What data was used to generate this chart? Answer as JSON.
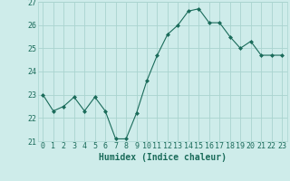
{
  "x": [
    0,
    1,
    2,
    3,
    4,
    5,
    6,
    7,
    8,
    9,
    10,
    11,
    12,
    13,
    14,
    15,
    16,
    17,
    18,
    19,
    20,
    21,
    22,
    23
  ],
  "y": [
    23.0,
    22.3,
    22.5,
    22.9,
    22.3,
    22.9,
    22.3,
    21.1,
    21.1,
    22.2,
    23.6,
    24.7,
    25.6,
    26.0,
    26.6,
    26.7,
    26.1,
    26.1,
    25.5,
    25.0,
    25.3,
    24.7,
    24.7,
    24.7
  ],
  "line_color": "#1a6b5a",
  "marker": "D",
  "marker_size": 2,
  "bg_color": "#ceecea",
  "grid_color": "#aad4cf",
  "tick_color": "#1a6b5a",
  "label_color": "#1a6b5a",
  "xlabel": "Humidex (Indice chaleur)",
  "ylim": [
    21.0,
    27.0
  ],
  "xlim": [
    -0.5,
    23.5
  ],
  "yticks": [
    21,
    22,
    23,
    24,
    25,
    26,
    27
  ],
  "xticks": [
    0,
    1,
    2,
    3,
    4,
    5,
    6,
    7,
    8,
    9,
    10,
    11,
    12,
    13,
    14,
    15,
    16,
    17,
    18,
    19,
    20,
    21,
    22,
    23
  ],
  "xlabel_fontsize": 7,
  "tick_fontsize": 6,
  "linewidth": 0.8
}
